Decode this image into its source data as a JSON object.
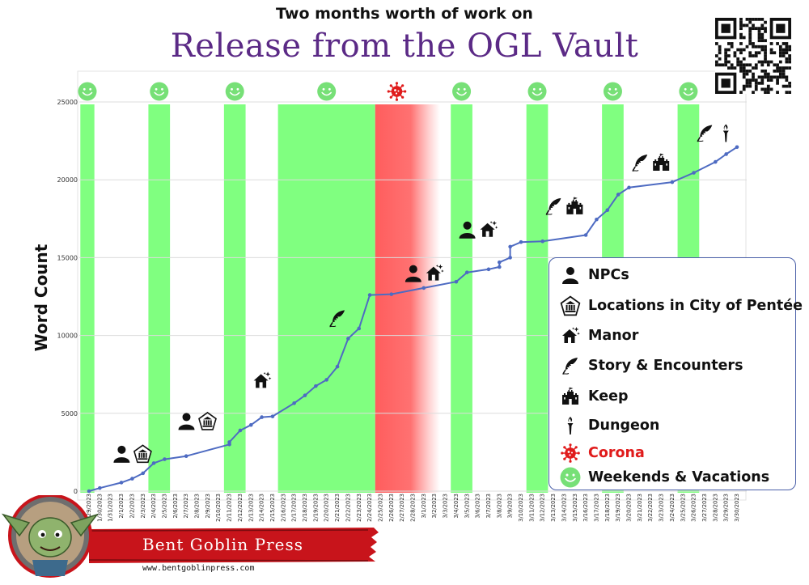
{
  "header": {
    "supertitle": "Two months worth of work on",
    "title": "Release from the OGL Vault"
  },
  "chart_data": {
    "type": "line",
    "ylabel": "Word Count",
    "xlabel": "",
    "ylim": [
      0,
      25000
    ],
    "yticks": [
      0,
      5000,
      10000,
      15000,
      20000,
      25000
    ],
    "grid": "horizontal",
    "x": [
      "1/29/2023",
      "1/30/2023",
      "1/31/2023",
      "2/1/2023",
      "2/2/2023",
      "2/3/2023",
      "2/4/2023",
      "2/5/2023",
      "2/6/2023",
      "2/7/2023",
      "2/8/2023",
      "2/9/2023",
      "2/10/2023",
      "2/11/2023",
      "2/12/2023",
      "2/13/2023",
      "2/14/2023",
      "2/15/2023",
      "2/16/2023",
      "2/17/2023",
      "2/18/2023",
      "2/19/2023",
      "2/20/2023",
      "2/21/2023",
      "2/22/2023",
      "2/23/2023",
      "2/24/2023",
      "2/25/2023",
      "2/26/2023",
      "2/27/2023",
      "2/28/2023",
      "3/1/2023",
      "3/2/2023",
      "3/3/2023",
      "3/4/2023",
      "3/5/2023",
      "3/6/2023",
      "3/7/2023",
      "3/8/2023",
      "3/9/2023",
      "3/10/2023",
      "3/11/2023",
      "3/12/2023",
      "3/13/2023",
      "3/14/2023",
      "3/15/2023",
      "3/16/2023",
      "3/17/2023",
      "3/18/2023",
      "3/19/2023",
      "3/20/2023",
      "3/21/2023",
      "3/22/2023",
      "3/23/2023",
      "3/24/2023",
      "3/25/2023",
      "3/26/2023",
      "3/27/2023",
      "3/28/2023",
      "3/29/2023",
      "3/30/2023"
    ],
    "series": [
      {
        "color": "#4e6bc2",
        "points": [
          [
            "1/29/2023",
            0
          ],
          [
            "1/30/2023",
            200
          ],
          [
            "2/1/2023",
            550
          ],
          [
            "2/2/2023",
            800
          ],
          [
            "2/3/2023",
            1150
          ],
          [
            "2/4/2023",
            1800
          ],
          [
            "2/5/2023",
            2050
          ],
          [
            "2/7/2023",
            2250
          ],
          [
            "2/11/2023",
            3000
          ],
          [
            "2/11/2023",
            3150
          ],
          [
            "2/12/2023",
            3900
          ],
          [
            "2/13/2023",
            4250
          ],
          [
            "2/14/2023",
            4750
          ],
          [
            "2/15/2023",
            4800
          ],
          [
            "2/17/2023",
            5650
          ],
          [
            "2/18/2023",
            6150
          ],
          [
            "2/19/2023",
            6750
          ],
          [
            "2/20/2023",
            7150
          ],
          [
            "2/21/2023",
            8000
          ],
          [
            "2/22/2023",
            9800
          ],
          [
            "2/23/2023",
            10450
          ],
          [
            "2/24/2023",
            12600
          ],
          [
            "2/26/2023",
            12650
          ],
          [
            "3/1/2023",
            13050
          ],
          [
            "3/4/2023",
            13450
          ],
          [
            "3/5/2023",
            14050
          ],
          [
            "3/7/2023",
            14250
          ],
          [
            "3/8/2023",
            14400
          ],
          [
            "3/8/2023",
            14700
          ],
          [
            "3/9/2023",
            15000
          ],
          [
            "3/9/2023",
            15700
          ],
          [
            "3/10/2023",
            16000
          ],
          [
            "3/12/2023",
            16050
          ],
          [
            "3/16/2023",
            16450
          ],
          [
            "3/17/2023",
            17450
          ],
          [
            "3/18/2023",
            18050
          ],
          [
            "3/19/2023",
            19050
          ],
          [
            "3/20/2023",
            19500
          ],
          [
            "3/24/2023",
            19850
          ],
          [
            "3/26/2023",
            20450
          ],
          [
            "3/28/2023",
            21150
          ],
          [
            "3/29/2023",
            21650
          ],
          [
            "3/30/2023",
            22100
          ]
        ]
      }
    ],
    "bands": [
      {
        "type": "weekend",
        "start": "1/29/2023",
        "end": "1/29/2023"
      },
      {
        "type": "weekend",
        "start": "2/4/2023",
        "end": "2/5/2023"
      },
      {
        "type": "weekend",
        "start": "2/11/2023",
        "end": "2/12/2023"
      },
      {
        "type": "weekend",
        "start": "2/16/2023",
        "end": "2/24/2023"
      },
      {
        "type": "corona",
        "start": "2/25/2023",
        "end": "3/2/2023"
      },
      {
        "type": "weekend",
        "start": "3/4/2023",
        "end": "3/5/2023"
      },
      {
        "type": "weekend",
        "start": "3/11/2023",
        "end": "3/12/2023"
      },
      {
        "type": "weekend",
        "start": "3/18/2023",
        "end": "3/19/2023"
      },
      {
        "type": "weekend",
        "start": "3/25/2023",
        "end": "3/26/2023"
      }
    ],
    "annotations": [
      {
        "icons": [
          "npc-icon",
          "city-location-icon"
        ],
        "x": "2/2/2023",
        "y": 2400
      },
      {
        "icons": [
          "npc-icon",
          "city-location-icon"
        ],
        "x": "2/8/2023",
        "y": 4500
      },
      {
        "icons": [
          "manor-icon"
        ],
        "x": "2/14/2023",
        "y": 7100
      },
      {
        "icons": [
          "feather-icon"
        ],
        "x": "2/21/2023",
        "y": 11100
      },
      {
        "icons": [
          "npc-icon",
          "manor-icon"
        ],
        "x": "3/1/2023",
        "y": 14000
      },
      {
        "icons": [
          "npc-icon",
          "manor-icon"
        ],
        "x": "3/6/2023",
        "y": 16800
      },
      {
        "icons": [
          "feather-icon",
          "keep-icon"
        ],
        "x": "3/14/2023",
        "y": 18300
      },
      {
        "icons": [
          "feather-icon",
          "keep-icon"
        ],
        "x": "3/22/2023",
        "y": 21100
      },
      {
        "icons": [
          "feather-icon",
          "dungeon-icon"
        ],
        "x": "3/28/2023",
        "y": 23000
      }
    ],
    "colors": {
      "weekend": "#80ff80",
      "corona": "#ff5d5d",
      "line": "#4e6bc2",
      "smiley": "#77e077"
    }
  },
  "legend": {
    "position": "right",
    "items": [
      {
        "label": "NPCs",
        "icon": "npc-icon"
      },
      {
        "label": "Locations in City of Pentée",
        "icon": "city-location-icon"
      },
      {
        "label": "Manor",
        "icon": "manor-icon"
      },
      {
        "label": "Story & Encounters",
        "icon": "feather-icon"
      },
      {
        "label": "Keep",
        "icon": "keep-icon"
      },
      {
        "label": "Dungeon",
        "icon": "dungeon-icon"
      },
      {
        "label": "Corona",
        "icon": "corona-icon",
        "color": "#e01b1b"
      },
      {
        "label": "Weekends & Vacations",
        "icon": "smiley-icon"
      }
    ]
  },
  "branding": {
    "press_name": "Bent Goblin Press",
    "url": "www.bentgoblinpress.com",
    "qr_icon": "qr-code-icon",
    "logo_icon": "goblin-logo-icon"
  }
}
